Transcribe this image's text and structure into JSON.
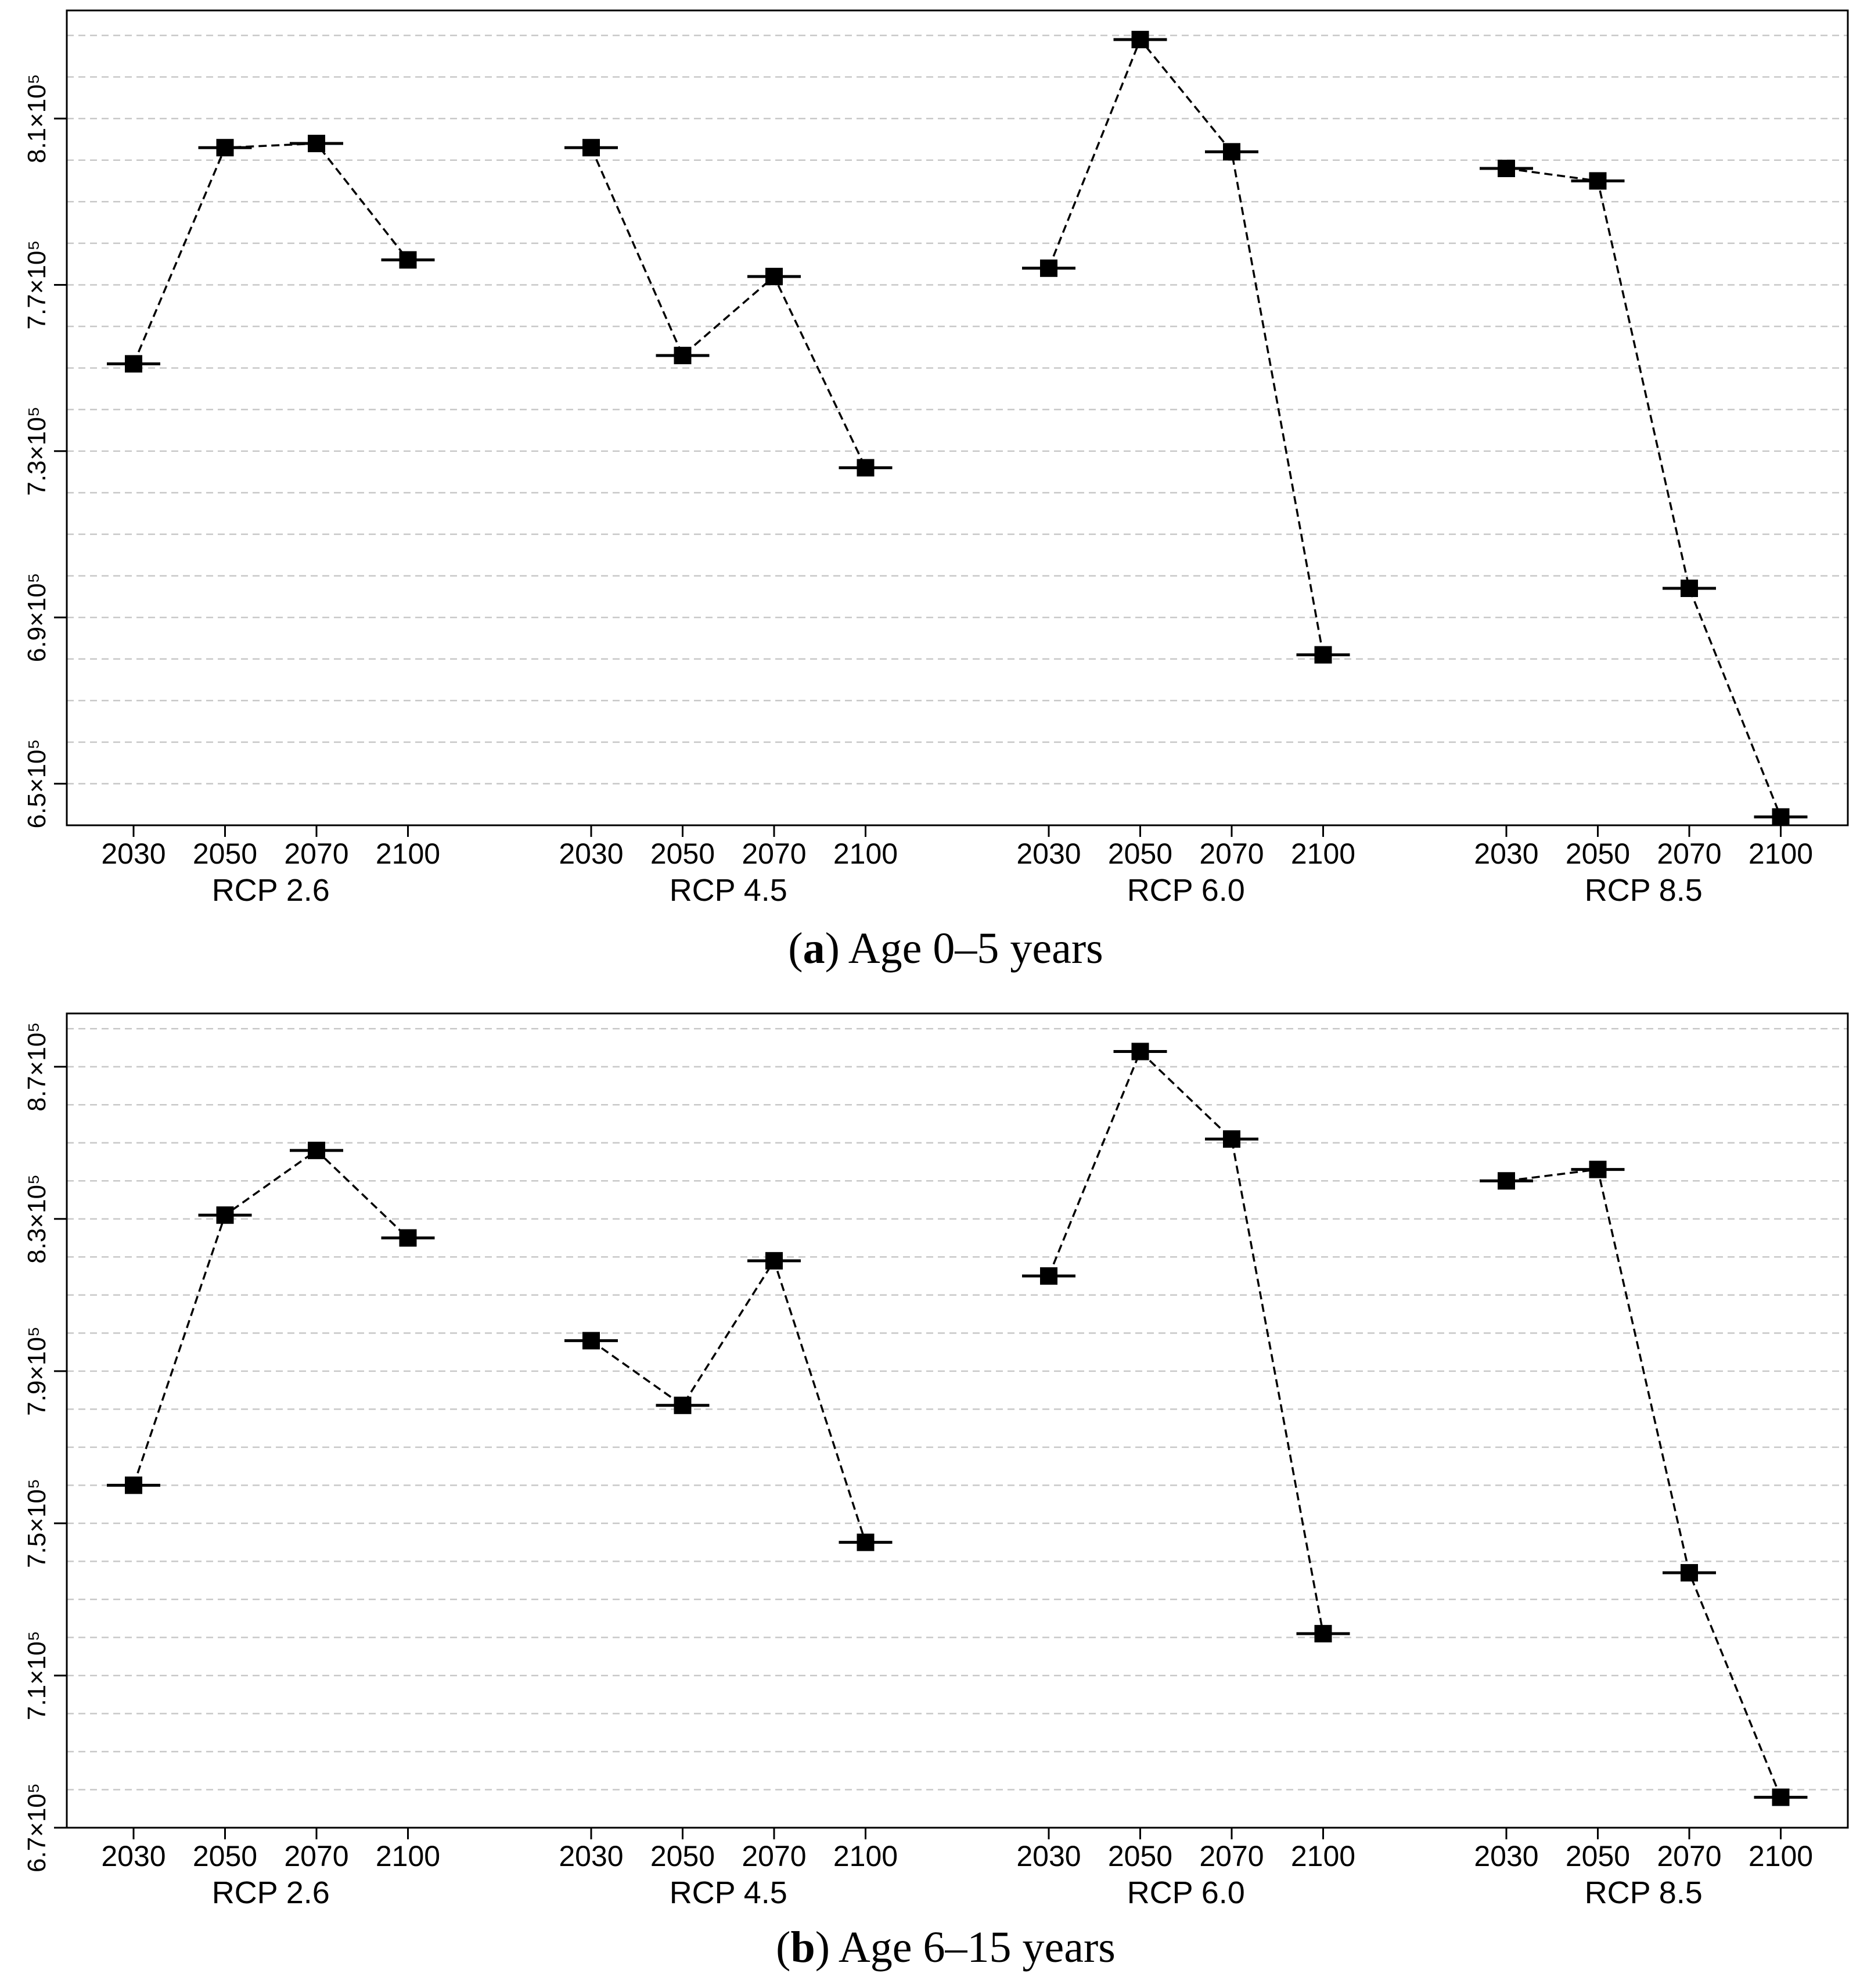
{
  "chart_data": [
    {
      "type": "scatter",
      "panel_label": "a",
      "caption": "Age 0–5 years",
      "groups": [
        "RCP 2.6",
        "RCP 4.5",
        "RCP 6.0",
        "RCP 8.5"
      ],
      "x_tick_labels": [
        "2030",
        "2050",
        "2070",
        "2100"
      ],
      "y_tick_labels": [
        "6.5×10⁵",
        "6.9×10⁵",
        "7.3×10⁵",
        "7.7×10⁵",
        "8.1×10⁵"
      ],
      "y_ticks": [
        650000,
        690000,
        730000,
        770000,
        810000
      ],
      "ylim": [
        640000,
        836000
      ],
      "grid": true,
      "series": [
        {
          "group": "RCP 2.6",
          "x": [
            "2030",
            "2050",
            "2070",
            "2100"
          ],
          "y": [
            751000,
            803000,
            804000,
            776000
          ]
        },
        {
          "group": "RCP 4.5",
          "x": [
            "2030",
            "2050",
            "2070",
            "2100"
          ],
          "y": [
            803000,
            753000,
            772000,
            726000
          ]
        },
        {
          "group": "RCP 6.0",
          "x": [
            "2030",
            "2050",
            "2070",
            "2100"
          ],
          "y": [
            774000,
            829000,
            802000,
            681000
          ]
        },
        {
          "group": "RCP 8.5",
          "x": [
            "2030",
            "2050",
            "2070",
            "2100"
          ],
          "y": [
            798000,
            795000,
            697000,
            642000
          ]
        }
      ]
    },
    {
      "type": "scatter",
      "panel_label": "b",
      "caption": "Age 6–15 years",
      "groups": [
        "RCP 2.6",
        "RCP 4.5",
        "RCP 6.0",
        "RCP 8.5"
      ],
      "x_tick_labels": [
        "2030",
        "2050",
        "2070",
        "2100"
      ],
      "y_tick_labels": [
        "6.7×10⁵",
        "7.1×10⁵",
        "7.5×10⁵",
        "7.9×10⁵",
        "8.3×10⁵",
        "8.7×10⁵"
      ],
      "y_ticks": [
        670000,
        710000,
        750000,
        790000,
        830000,
        870000
      ],
      "ylim": [
        670000,
        884000
      ],
      "grid": true,
      "series": [
        {
          "group": "RCP 2.6",
          "x": [
            "2030",
            "2050",
            "2070",
            "2100"
          ],
          "y": [
            760000,
            831000,
            848000,
            825000
          ]
        },
        {
          "group": "RCP 4.5",
          "x": [
            "2030",
            "2050",
            "2070",
            "2100"
          ],
          "y": [
            798000,
            781000,
            819000,
            745000
          ]
        },
        {
          "group": "RCP 6.0",
          "x": [
            "2030",
            "2050",
            "2070",
            "2100"
          ],
          "y": [
            815000,
            874000,
            851000,
            721000
          ]
        },
        {
          "group": "RCP 8.5",
          "x": [
            "2030",
            "2050",
            "2070",
            "2100"
          ],
          "y": [
            840000,
            843000,
            737000,
            678000
          ]
        }
      ]
    }
  ]
}
